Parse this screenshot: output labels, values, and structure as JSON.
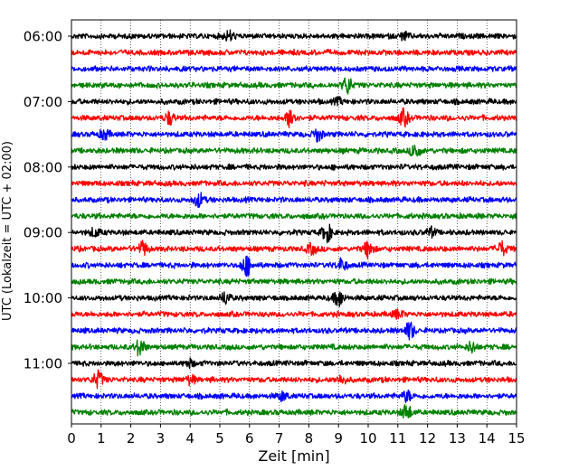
{
  "chart_data": {
    "type": "line",
    "title": "",
    "xlabel": "Zeit  [min]",
    "ylabel": "UTC (Lokalzeit = UTC + 02:00)",
    "xlim": [
      0,
      15
    ],
    "x_ticks": [
      0,
      1,
      2,
      3,
      4,
      5,
      6,
      7,
      8,
      9,
      10,
      11,
      12,
      13,
      14,
      15
    ],
    "y_tick_labels": [
      "06:00",
      "07:00",
      "08:00",
      "09:00",
      "10:00",
      "11:00"
    ],
    "grid": "vertical dotted at each minute",
    "trace_interval_min": 15,
    "trace_colors": [
      "#000000",
      "#ff0000",
      "#0000ff",
      "#008000"
    ],
    "traces": [
      {
        "start": "06:00",
        "color": "#000000",
        "events": [
          {
            "t": 5.3,
            "amp": 0.6
          },
          {
            "t": 11.2,
            "amp": 0.4
          }
        ]
      },
      {
        "start": "06:15",
        "color": "#ff0000",
        "events": []
      },
      {
        "start": "06:30",
        "color": "#0000ff",
        "events": []
      },
      {
        "start": "06:45",
        "color": "#008000",
        "events": [
          {
            "t": 9.3,
            "amp": 1.0
          }
        ]
      },
      {
        "start": "07:00",
        "color": "#000000",
        "events": [
          {
            "t": 9.0,
            "amp": 0.3
          }
        ]
      },
      {
        "start": "07:15",
        "color": "#ff0000",
        "events": [
          {
            "t": 3.3,
            "amp": 0.7
          },
          {
            "t": 7.4,
            "amp": 1.2
          },
          {
            "t": 11.2,
            "amp": 1.0
          }
        ]
      },
      {
        "start": "07:30",
        "color": "#0000ff",
        "events": [
          {
            "t": 1.1,
            "amp": 0.6
          },
          {
            "t": 8.3,
            "amp": 0.7
          }
        ]
      },
      {
        "start": "07:45",
        "color": "#008000",
        "events": [
          {
            "t": 11.6,
            "amp": 0.9
          }
        ]
      },
      {
        "start": "08:00",
        "color": "#000000",
        "events": []
      },
      {
        "start": "08:15",
        "color": "#ff0000",
        "events": []
      },
      {
        "start": "08:30",
        "color": "#0000ff",
        "events": [
          {
            "t": 4.3,
            "amp": 0.8
          }
        ]
      },
      {
        "start": "08:45",
        "color": "#008000",
        "events": []
      },
      {
        "start": "09:00",
        "color": "#000000",
        "events": [
          {
            "t": 0.8,
            "amp": 0.5
          },
          {
            "t": 8.6,
            "amp": 1.1
          },
          {
            "t": 12.1,
            "amp": 0.5
          }
        ]
      },
      {
        "start": "09:15",
        "color": "#ff0000",
        "events": [
          {
            "t": 2.4,
            "amp": 0.8
          },
          {
            "t": 8.1,
            "amp": 0.6
          },
          {
            "t": 10.0,
            "amp": 1.0
          },
          {
            "t": 14.5,
            "amp": 0.8
          }
        ]
      },
      {
        "start": "09:30",
        "color": "#0000ff",
        "events": [
          {
            "t": 5.9,
            "amp": 1.2
          },
          {
            "t": 9.1,
            "amp": 0.7
          }
        ]
      },
      {
        "start": "09:45",
        "color": "#008000",
        "events": []
      },
      {
        "start": "10:00",
        "color": "#000000",
        "events": [
          {
            "t": 5.2,
            "amp": 0.7
          },
          {
            "t": 9.0,
            "amp": 1.0
          }
        ]
      },
      {
        "start": "10:15",
        "color": "#ff0000",
        "events": [
          {
            "t": 11.0,
            "amp": 0.5
          }
        ]
      },
      {
        "start": "10:30",
        "color": "#0000ff",
        "events": [
          {
            "t": 11.4,
            "amp": 1.0
          }
        ]
      },
      {
        "start": "10:45",
        "color": "#008000",
        "events": [
          {
            "t": 2.3,
            "amp": 1.0
          },
          {
            "t": 13.5,
            "amp": 0.6
          }
        ]
      },
      {
        "start": "11:00",
        "color": "#000000",
        "events": [
          {
            "t": 4.0,
            "amp": 0.4
          }
        ]
      },
      {
        "start": "11:15",
        "color": "#ff0000",
        "events": [
          {
            "t": 0.9,
            "amp": 1.0
          },
          {
            "t": 4.0,
            "amp": 0.5
          },
          {
            "t": 9.1,
            "amp": 0.5
          }
        ]
      },
      {
        "start": "11:30",
        "color": "#0000ff",
        "events": [
          {
            "t": 7.1,
            "amp": 0.5
          },
          {
            "t": 11.3,
            "amp": 0.6
          }
        ]
      },
      {
        "start": "11:45",
        "color": "#008000",
        "events": [
          {
            "t": 11.3,
            "amp": 0.9
          }
        ]
      }
    ]
  }
}
